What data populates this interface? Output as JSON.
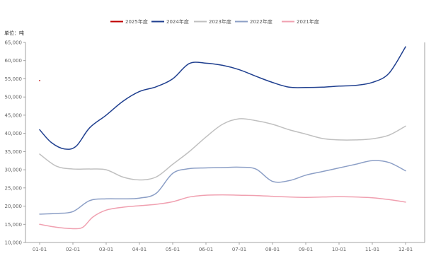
{
  "chart_data": {
    "type": "line",
    "unit_label": "单位：吨",
    "xlabel": "",
    "ylabel": "",
    "categories": [
      "01-01",
      "02-01",
      "03-01",
      "04-01",
      "05-01",
      "06-01",
      "07-01",
      "08-01",
      "09-01",
      "10-01",
      "11-01",
      "12-01"
    ],
    "ylim": [
      10000,
      65000
    ],
    "yticks": [
      10000,
      15000,
      20000,
      25000,
      30000,
      35000,
      40000,
      45000,
      50000,
      55000,
      60000,
      65000
    ],
    "ytick_labels": [
      "10,000",
      "15,000",
      "20,000",
      "25,000",
      "30,000",
      "35,000",
      "40,000",
      "45,000",
      "50,000",
      "55,000",
      "60,000",
      "65,000"
    ],
    "grid": false,
    "legend_position": "top-center",
    "series": [
      {
        "name": "2025年度",
        "color": "#c00000",
        "points": [
          [
            0,
            54500
          ]
        ]
      },
      {
        "name": "2024年度",
        "color": "#1f3f8f",
        "points": [
          [
            0,
            41000
          ],
          [
            0.35,
            37500
          ],
          [
            0.75,
            35700
          ],
          [
            1.1,
            36500
          ],
          [
            1.5,
            41500
          ],
          [
            2,
            45000
          ],
          [
            2.5,
            48800
          ],
          [
            3,
            51500
          ],
          [
            3.5,
            52800
          ],
          [
            4,
            55000
          ],
          [
            4.5,
            59200
          ],
          [
            5,
            59300
          ],
          [
            5.5,
            58700
          ],
          [
            6,
            57500
          ],
          [
            6.5,
            55700
          ],
          [
            7,
            54000
          ],
          [
            7.5,
            52700
          ],
          [
            8,
            52600
          ],
          [
            8.5,
            52700
          ],
          [
            9,
            53000
          ],
          [
            9.5,
            53200
          ],
          [
            10,
            54000
          ],
          [
            10.5,
            56500
          ],
          [
            11,
            63800
          ]
        ]
      },
      {
        "name": "2023年度",
        "color": "#c0c0c0",
        "points": [
          [
            0,
            34300
          ],
          [
            0.5,
            31000
          ],
          [
            1,
            30200
          ],
          [
            1.5,
            30200
          ],
          [
            2,
            30000
          ],
          [
            2.5,
            28000
          ],
          [
            3,
            27200
          ],
          [
            3.5,
            28000
          ],
          [
            4,
            31500
          ],
          [
            4.5,
            35000
          ],
          [
            5,
            39000
          ],
          [
            5.5,
            42500
          ],
          [
            6,
            44000
          ],
          [
            6.5,
            43500
          ],
          [
            7,
            42500
          ],
          [
            7.5,
            41000
          ],
          [
            8,
            39800
          ],
          [
            8.5,
            38600
          ],
          [
            9,
            38200
          ],
          [
            9.5,
            38200
          ],
          [
            10,
            38500
          ],
          [
            10.5,
            39500
          ],
          [
            11,
            42000
          ]
        ]
      },
      {
        "name": "2022年度",
        "color": "#8c9fc6",
        "points": [
          [
            0,
            17800
          ],
          [
            0.5,
            18000
          ],
          [
            1,
            18500
          ],
          [
            1.5,
            21500
          ],
          [
            2,
            22000
          ],
          [
            2.5,
            22000
          ],
          [
            3,
            22200
          ],
          [
            3.5,
            23500
          ],
          [
            4,
            29000
          ],
          [
            4.5,
            30300
          ],
          [
            5,
            30500
          ],
          [
            5.5,
            30600
          ],
          [
            6,
            30700
          ],
          [
            6.5,
            30200
          ],
          [
            7,
            26800
          ],
          [
            7.5,
            27000
          ],
          [
            8,
            28500
          ],
          [
            8.5,
            29500
          ],
          [
            9,
            30500
          ],
          [
            9.5,
            31500
          ],
          [
            10,
            32500
          ],
          [
            10.5,
            32000
          ],
          [
            11,
            29700
          ]
        ]
      },
      {
        "name": "2021年度",
        "color": "#f0a0b0",
        "points": [
          [
            0,
            15000
          ],
          [
            0.5,
            14200
          ],
          [
            1,
            13800
          ],
          [
            1.3,
            14200
          ],
          [
            1.6,
            17000
          ],
          [
            2,
            18900
          ],
          [
            2.5,
            19700
          ],
          [
            3,
            20100
          ],
          [
            3.5,
            20500
          ],
          [
            4,
            21200
          ],
          [
            4.5,
            22500
          ],
          [
            5,
            23000
          ],
          [
            5.5,
            23100
          ],
          [
            6,
            23000
          ],
          [
            6.5,
            22900
          ],
          [
            7,
            22700
          ],
          [
            7.5,
            22500
          ],
          [
            8,
            22400
          ],
          [
            8.5,
            22500
          ],
          [
            9,
            22600
          ],
          [
            9.5,
            22500
          ],
          [
            10,
            22300
          ],
          [
            10.5,
            21800
          ],
          [
            11,
            21100
          ]
        ]
      }
    ]
  }
}
